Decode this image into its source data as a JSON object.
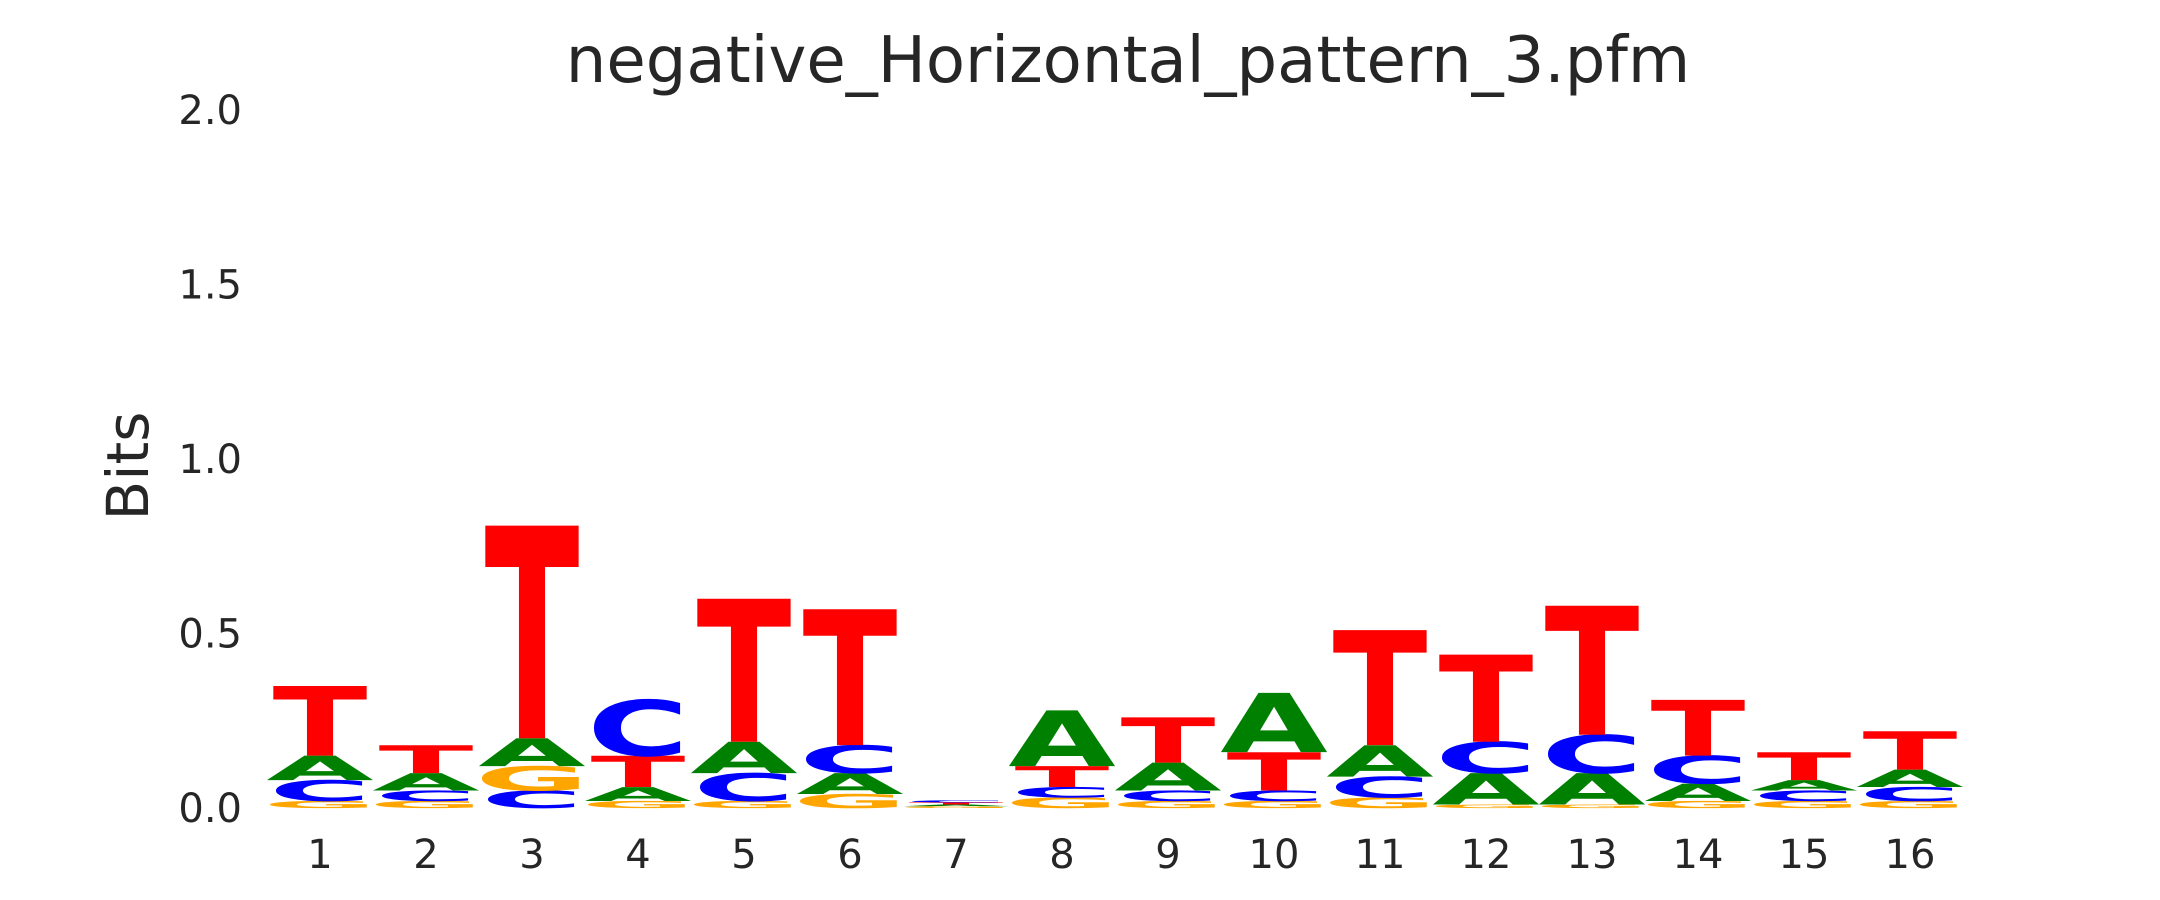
{
  "chart_data": {
    "type": "sequence_logo",
    "title": "negative_Horizontal_pattern_3.pfm",
    "xlabel": "",
    "ylabel": "Bits",
    "ylim": [
      0,
      2.0
    ],
    "yticks": [
      "0.0",
      "0.5",
      "1.0",
      "1.5",
      "2.0"
    ],
    "grid": false,
    "colors": {
      "A": "#008000",
      "C": "#0000ff",
      "G": "#ffa500",
      "T": "#ff0000"
    },
    "positions": [
      {
        "label": "1",
        "stack": [
          [
            "G",
            0.02
          ],
          [
            "C",
            0.06
          ],
          [
            "A",
            0.07
          ],
          [
            "T",
            0.2
          ]
        ]
      },
      {
        "label": "2",
        "stack": [
          [
            "G",
            0.02
          ],
          [
            "C",
            0.03
          ],
          [
            "A",
            0.05
          ],
          [
            "T",
            0.08
          ]
        ]
      },
      {
        "label": "3",
        "stack": [
          [
            "C",
            0.05
          ],
          [
            "G",
            0.07
          ],
          [
            "A",
            0.08
          ],
          [
            "T",
            0.61
          ]
        ]
      },
      {
        "label": "4",
        "stack": [
          [
            "G",
            0.02
          ],
          [
            "A",
            0.04
          ],
          [
            "T",
            0.09
          ],
          [
            "C",
            0.16
          ]
        ]
      },
      {
        "label": "5",
        "stack": [
          [
            "G",
            0.02
          ],
          [
            "C",
            0.08
          ],
          [
            "A",
            0.09
          ],
          [
            "T",
            0.41
          ]
        ]
      },
      {
        "label": "6",
        "stack": [
          [
            "G",
            0.04
          ],
          [
            "A",
            0.06
          ],
          [
            "C",
            0.08
          ],
          [
            "T",
            0.39
          ]
        ]
      },
      {
        "label": "7",
        "stack": [
          [
            "G",
            0.005
          ],
          [
            "A",
            0.005
          ],
          [
            "T",
            0.006
          ],
          [
            "C",
            0.006
          ]
        ]
      },
      {
        "label": "8",
        "stack": [
          [
            "G",
            0.03
          ],
          [
            "C",
            0.03
          ],
          [
            "T",
            0.06
          ],
          [
            "A",
            0.16
          ]
        ]
      },
      {
        "label": "9",
        "stack": [
          [
            "G",
            0.02
          ],
          [
            "C",
            0.03
          ],
          [
            "A",
            0.08
          ],
          [
            "T",
            0.13
          ]
        ]
      },
      {
        "label": "10",
        "stack": [
          [
            "G",
            0.02
          ],
          [
            "C",
            0.03
          ],
          [
            "T",
            0.11
          ],
          [
            "A",
            0.17
          ]
        ]
      },
      {
        "label": "11",
        "stack": [
          [
            "G",
            0.03
          ],
          [
            "C",
            0.06
          ],
          [
            "A",
            0.09
          ],
          [
            "T",
            0.33
          ]
        ]
      },
      {
        "label": "12",
        "stack": [
          [
            "G",
            0.01
          ],
          [
            "A",
            0.09
          ],
          [
            "C",
            0.09
          ],
          [
            "T",
            0.25
          ]
        ]
      },
      {
        "label": "13",
        "stack": [
          [
            "G",
            0.01
          ],
          [
            "A",
            0.09
          ],
          [
            "C",
            0.11
          ],
          [
            "T",
            0.37
          ]
        ]
      },
      {
        "label": "14",
        "stack": [
          [
            "G",
            0.02
          ],
          [
            "A",
            0.05
          ],
          [
            "C",
            0.08
          ],
          [
            "T",
            0.16
          ]
        ]
      },
      {
        "label": "15",
        "stack": [
          [
            "G",
            0.02
          ],
          [
            "C",
            0.03
          ],
          [
            "A",
            0.03
          ],
          [
            "T",
            0.08
          ]
        ]
      },
      {
        "label": "16",
        "stack": [
          [
            "G",
            0.02
          ],
          [
            "C",
            0.04
          ],
          [
            "A",
            0.05
          ],
          [
            "T",
            0.11
          ]
        ]
      }
    ]
  }
}
